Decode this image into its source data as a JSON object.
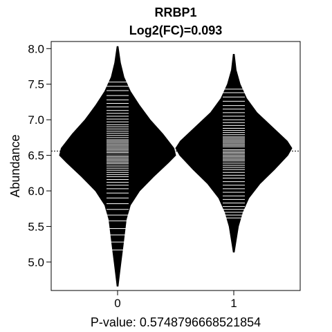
{
  "chart_data": {
    "type": "beanplot",
    "title": "RRBP1",
    "subtitle": "Log2(FC)=0.093",
    "ylabel": "Abundance",
    "xlabel": "P-value: 0.5748796668521854",
    "categories": [
      "0",
      "1"
    ],
    "ylim": [
      4.6,
      8.1
    ],
    "yticks": [
      5.0,
      5.5,
      6.0,
      6.5,
      7.0,
      7.5,
      8.0
    ],
    "ytick_labels": [
      "5.0",
      "5.5",
      "6.0",
      "6.5",
      "7.0",
      "7.5",
      "8.0"
    ],
    "overall_mean": 6.56,
    "grid": false,
    "legend": "none",
    "series": [
      {
        "group": "0",
        "mean": 6.51,
        "range": [
          4.66,
          8.03
        ],
        "density": [
          [
            4.66,
            0.01
          ],
          [
            4.8,
            0.03
          ],
          [
            5.0,
            0.06
          ],
          [
            5.2,
            0.09
          ],
          [
            5.4,
            0.12
          ],
          [
            5.6,
            0.15
          ],
          [
            5.8,
            0.22
          ],
          [
            6.0,
            0.38
          ],
          [
            6.2,
            0.62
          ],
          [
            6.4,
            0.88
          ],
          [
            6.5,
            1.0
          ],
          [
            6.6,
            0.97
          ],
          [
            6.8,
            0.78
          ],
          [
            7.0,
            0.56
          ],
          [
            7.2,
            0.38
          ],
          [
            7.4,
            0.22
          ],
          [
            7.6,
            0.11
          ],
          [
            7.8,
            0.05
          ],
          [
            8.03,
            0.01
          ]
        ],
        "observations": [
          5.17,
          5.28,
          5.38,
          5.47,
          5.58,
          5.66,
          5.74,
          5.82,
          5.9,
          5.97,
          6.03,
          6.08,
          6.12,
          6.16,
          6.2,
          6.23,
          6.26,
          6.29,
          6.32,
          6.35,
          6.38,
          6.4,
          6.42,
          6.44,
          6.46,
          6.48,
          6.5,
          6.52,
          6.54,
          6.56,
          6.58,
          6.6,
          6.62,
          6.64,
          6.66,
          6.68,
          6.7,
          6.72,
          6.75,
          6.78,
          6.81,
          6.84,
          6.87,
          6.9,
          6.93,
          6.97,
          7.01,
          7.05,
          7.09,
          7.13,
          7.18,
          7.23,
          7.28,
          7.34,
          7.41,
          7.47,
          7.53
        ]
      },
      {
        "group": "1",
        "mean": 6.6,
        "range": [
          5.14,
          7.92
        ],
        "density": [
          [
            5.14,
            0.01
          ],
          [
            5.3,
            0.04
          ],
          [
            5.5,
            0.08
          ],
          [
            5.7,
            0.15
          ],
          [
            5.9,
            0.26
          ],
          [
            6.1,
            0.45
          ],
          [
            6.3,
            0.7
          ],
          [
            6.5,
            0.93
          ],
          [
            6.6,
            1.0
          ],
          [
            6.7,
            0.92
          ],
          [
            6.9,
            0.66
          ],
          [
            7.1,
            0.4
          ],
          [
            7.3,
            0.22
          ],
          [
            7.5,
            0.11
          ],
          [
            7.7,
            0.04
          ],
          [
            7.92,
            0.01
          ]
        ],
        "observations": [
          5.62,
          5.66,
          5.7,
          5.74,
          5.78,
          5.83,
          5.88,
          5.93,
          5.98,
          6.03,
          6.08,
          6.13,
          6.18,
          6.22,
          6.26,
          6.3,
          6.33,
          6.36,
          6.39,
          6.42,
          6.44,
          6.46,
          6.48,
          6.5,
          6.52,
          6.54,
          6.56,
          6.58,
          6.6,
          6.62,
          6.64,
          6.66,
          6.68,
          6.7,
          6.72,
          6.74,
          6.76,
          6.79,
          6.82,
          6.85,
          6.88,
          6.92,
          6.96,
          7.0,
          7.05,
          7.1,
          7.15,
          7.2,
          7.26,
          7.32,
          7.38,
          7.43
        ]
      }
    ]
  }
}
